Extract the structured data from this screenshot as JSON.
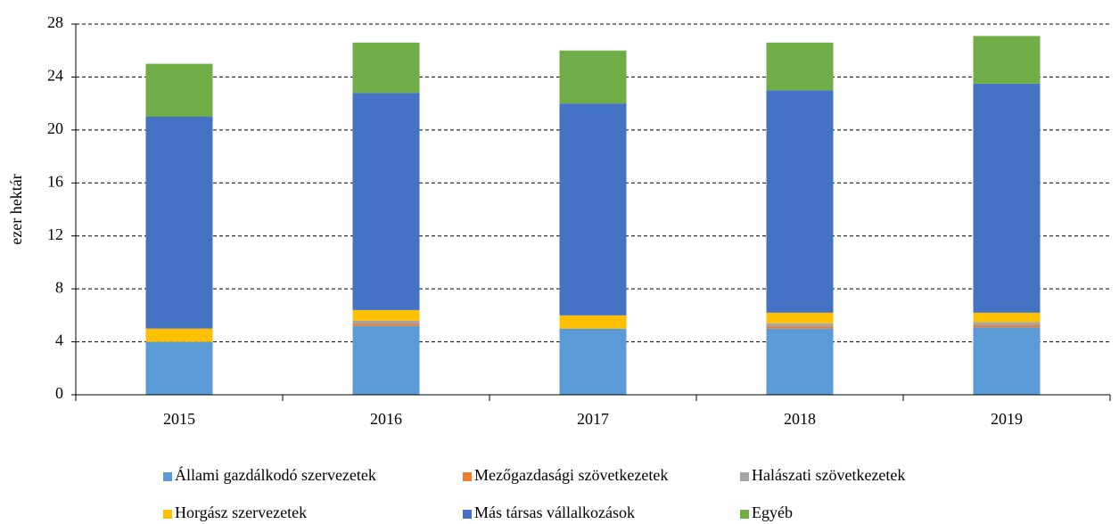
{
  "chart_data": {
    "type": "stacked_bar",
    "y_label": "ezer hektár",
    "categories": [
      "2015",
      "2016",
      "2017",
      "2018",
      "2019"
    ],
    "series": [
      {
        "name": "Állami gazdálkodó szervezetek",
        "color": "#5b9bd5",
        "values": [
          4.0,
          5.2,
          5.0,
          5.0,
          5.1
        ]
      },
      {
        "name": "Mezőgazdasági szövetkezetek",
        "color": "#ed7d31",
        "values": [
          0,
          0.15,
          0,
          0.15,
          0.15
        ]
      },
      {
        "name": "Halászati szövetkezetek",
        "color": "#a5a5a5",
        "values": [
          0,
          0.25,
          0,
          0.25,
          0.25
        ]
      },
      {
        "name": "Horgász szervezetek",
        "color": "#ffc000",
        "values": [
          1.0,
          0.8,
          1.0,
          0.8,
          0.7
        ]
      },
      {
        "name": "Más társas vállalkozások",
        "color": "#4472c4",
        "values": [
          16.0,
          16.4,
          16.0,
          16.8,
          17.3
        ]
      },
      {
        "name": "Egyéb",
        "color": "#70ad47",
        "values": [
          4.0,
          3.8,
          4.0,
          3.6,
          3.6
        ]
      }
    ],
    "ylim": [
      0,
      28
    ],
    "yticks": [
      0,
      4,
      8,
      12,
      16,
      20,
      24,
      28
    ],
    "grid": true
  }
}
